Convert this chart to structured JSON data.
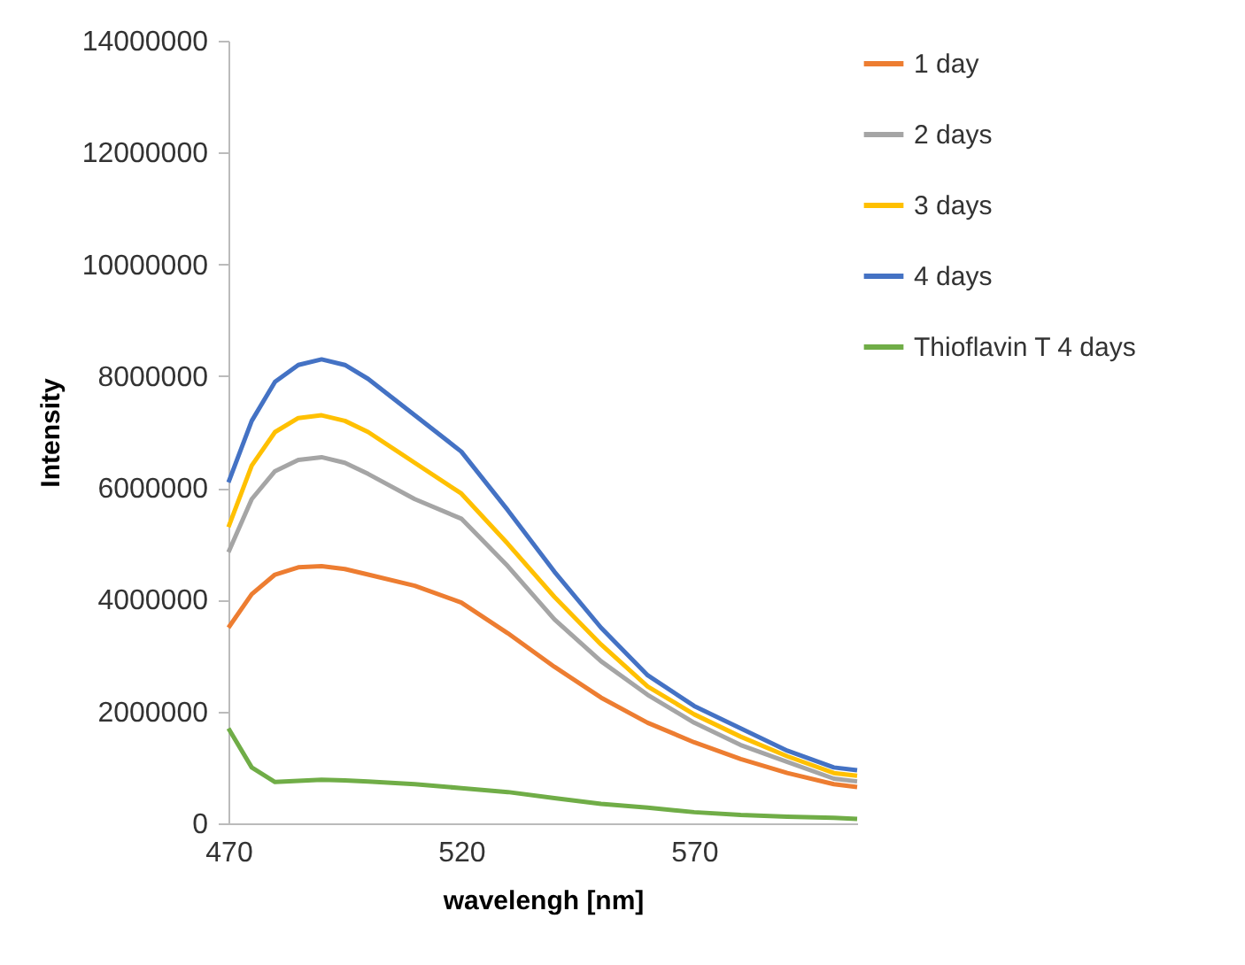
{
  "chart_data": {
    "type": "line",
    "xlabel": "wavelengh [nm]",
    "ylabel": "Intensity",
    "x": [
      470,
      475,
      480,
      485,
      490,
      495,
      500,
      510,
      520,
      530,
      540,
      550,
      560,
      570,
      580,
      590,
      600,
      605
    ],
    "xlim": [
      470,
      605
    ],
    "xticks": [
      470,
      520,
      570
    ],
    "ylim": [
      0,
      14000000
    ],
    "yticks": [
      0,
      2000000,
      4000000,
      6000000,
      8000000,
      10000000,
      12000000,
      14000000
    ],
    "grid": false,
    "legend": "right",
    "marker": "none",
    "line_style": "solid",
    "series": [
      {
        "name": "1 day",
        "color": "#ed7d31",
        "values": [
          3500000,
          4100000,
          4450000,
          4580000,
          4600000,
          4550000,
          4450000,
          4250000,
          3950000,
          3400000,
          2800000,
          2250000,
          1800000,
          1450000,
          1150000,
          900000,
          700000,
          650000
        ]
      },
      {
        "name": "2 days",
        "color": "#a5a5a5",
        "values": [
          4850000,
          5800000,
          6300000,
          6500000,
          6550000,
          6450000,
          6250000,
          5800000,
          5450000,
          4600000,
          3650000,
          2900000,
          2300000,
          1800000,
          1400000,
          1100000,
          800000,
          750000
        ]
      },
      {
        "name": "3 days",
        "color": "#ffc000",
        "values": [
          5300000,
          6400000,
          7000000,
          7250000,
          7300000,
          7200000,
          7000000,
          6450000,
          5900000,
          5000000,
          4050000,
          3200000,
          2450000,
          1950000,
          1550000,
          1200000,
          900000,
          850000
        ]
      },
      {
        "name": "4 days",
        "color": "#4472c4",
        "values": [
          6100000,
          7200000,
          7900000,
          8200000,
          8300000,
          8200000,
          7950000,
          7300000,
          6650000,
          5600000,
          4500000,
          3500000,
          2650000,
          2100000,
          1700000,
          1300000,
          1000000,
          950000
        ]
      },
      {
        "name": "Thioflavin T 4 days",
        "color": "#70ad47",
        "values": [
          1700000,
          1000000,
          740000,
          760000,
          780000,
          770000,
          750000,
          700000,
          630000,
          560000,
          450000,
          350000,
          280000,
          200000,
          150000,
          120000,
          100000,
          80000
        ]
      }
    ]
  }
}
